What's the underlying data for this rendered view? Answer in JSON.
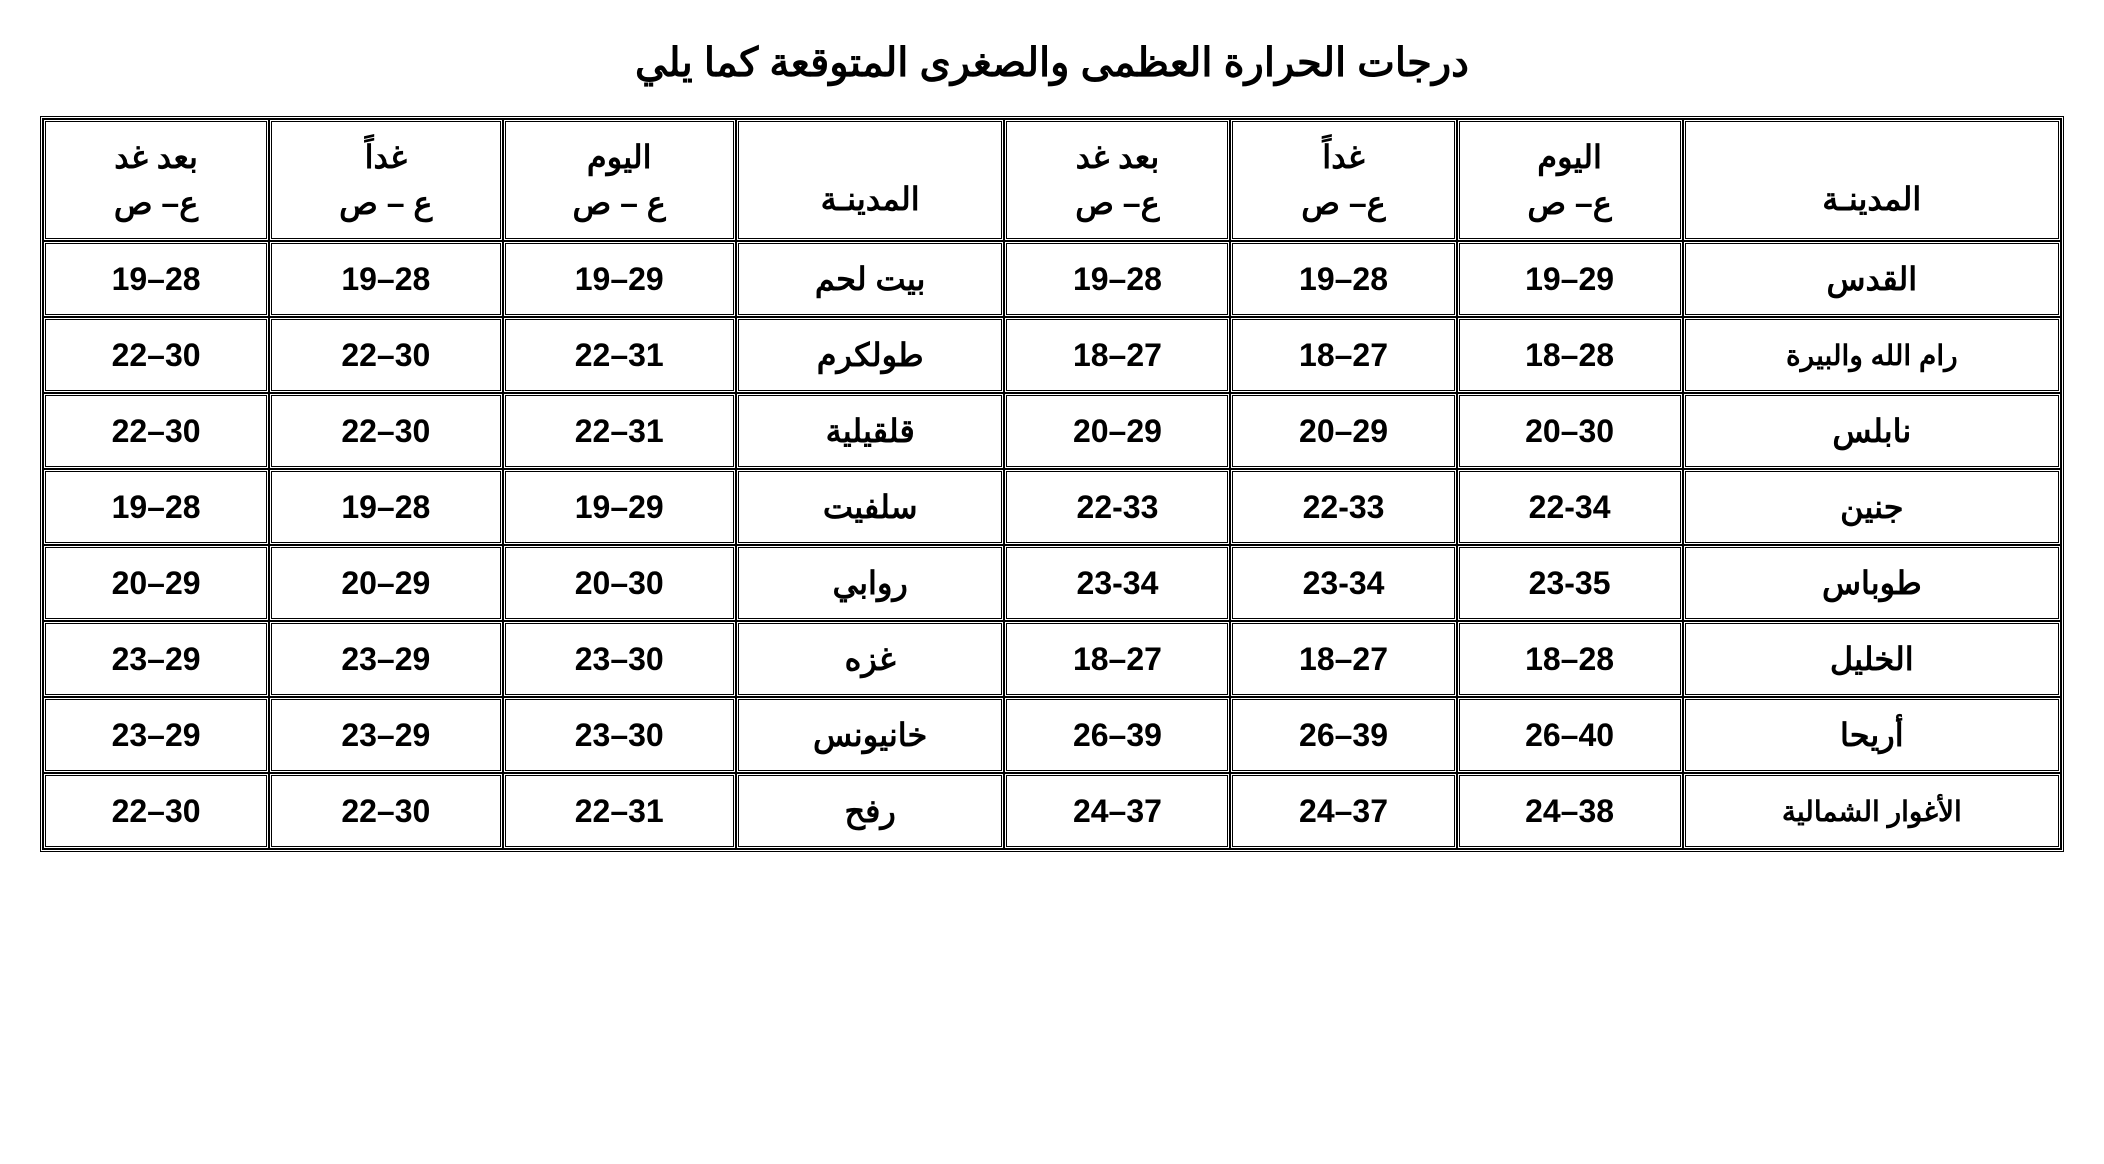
{
  "title": "درجات الحرارة العظمى والصغرى المتوقعة كما يلي",
  "headers": {
    "city": "المدينـة",
    "today_label": "اليوم",
    "tomorrow_label": "غداً",
    "after_tomorrow_label": "بعد غد",
    "temp_sub": "ع– ص",
    "temp_sub_after": "ع– ص",
    "temp_sub_tomorrow": "ع – ص"
  },
  "columns_right": [
    {
      "key": "city1",
      "label": "المدينـة"
    },
    {
      "key": "today1",
      "line1": "اليوم",
      "line2": "ع– ص"
    },
    {
      "key": "tomorrow1",
      "line1": "غداً",
      "line2": "ع– ص"
    },
    {
      "key": "after1",
      "line1": "بعد غد",
      "line2": "ع– ص"
    }
  ],
  "columns_left": [
    {
      "key": "city2",
      "label": "المدينـة"
    },
    {
      "key": "today2",
      "line1": "اليوم",
      "line2": "ع – ص"
    },
    {
      "key": "tomorrow2",
      "line1": "غداً",
      "line2": "ع – ص"
    },
    {
      "key": "after2",
      "line1": "بعد غد",
      "line2": "ع– ص"
    }
  ],
  "rows": [
    {
      "city1": "القدس",
      "today1": "19–29",
      "tomorrow1": "19–28",
      "after1": "19–28",
      "city2": "بيت لحم",
      "today2": "19–29",
      "tomorrow2": "19–28",
      "after2": "19–28"
    },
    {
      "city1": "رام الله والبيرة",
      "city1_small": true,
      "today1": "18–28",
      "tomorrow1": "18–27",
      "after1": "18–27",
      "city2": "طولكرم",
      "today2": "22–31",
      "tomorrow2": "22–30",
      "after2": "22–30"
    },
    {
      "city1": "نابلس",
      "today1": "20–30",
      "tomorrow1": "20–29",
      "after1": "20–29",
      "city2": "قلقيلية",
      "today2": "22–31",
      "tomorrow2": "22–30",
      "after2": "22–30"
    },
    {
      "city1": "جنين",
      "today1": "22-34",
      "tomorrow1": "22-33",
      "after1": "22-33",
      "city2": "سلفيت",
      "today2": "19–29",
      "tomorrow2": "19–28",
      "after2": "19–28"
    },
    {
      "city1": "طوباس",
      "today1": "23-35",
      "tomorrow1": "23-34",
      "after1": "23-34",
      "city2": "روابي",
      "today2": "20–30",
      "tomorrow2": "20–29",
      "after2": "20–29"
    },
    {
      "city1": "الخليل",
      "today1": "18–28",
      "tomorrow1": "18–27",
      "after1": "18–27",
      "city2": "غزه",
      "today2": "23–30",
      "tomorrow2": "23–29",
      "after2": "23–29"
    },
    {
      "city1": "أريحا",
      "today1": "26–40",
      "tomorrow1": "26–39",
      "after1": "26–39",
      "city2": "خانيونس",
      "today2": "23–30",
      "tomorrow2": "23–29",
      "after2": "23–29"
    },
    {
      "city1": "الأغوار الشمالية",
      "city1_small": true,
      "today1": "24–38",
      "tomorrow1": "24–37",
      "after1": "24–37",
      "city2": "رفح",
      "today2": "22–31",
      "tomorrow2": "22–30",
      "after2": "22–30"
    }
  ],
  "styling": {
    "background_color": "#ffffff",
    "text_color": "#000000",
    "border_color": "#000000",
    "border_style": "double",
    "border_width": 3,
    "title_fontsize": 40,
    "cell_fontsize": 32,
    "small_city_fontsize": 28,
    "font_weight": "bold",
    "cell_padding": "16px 20px"
  }
}
